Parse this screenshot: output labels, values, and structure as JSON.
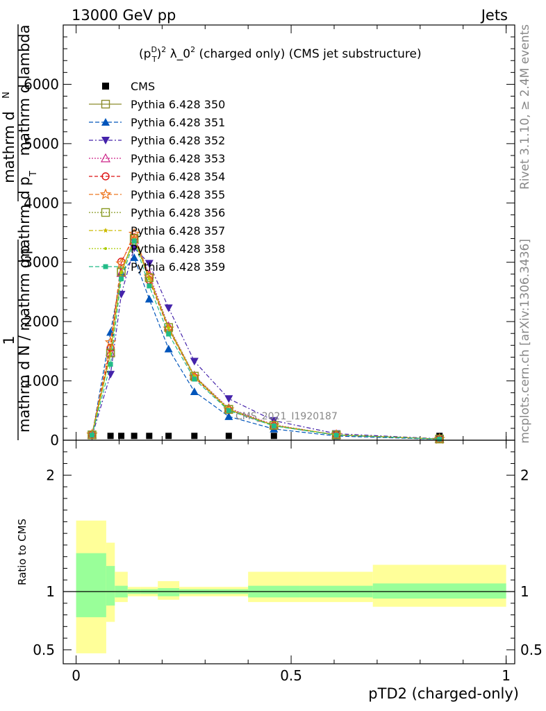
{
  "header": {
    "left": "13000 GeV pp",
    "right": "Jets"
  },
  "side": {
    "rivet": "Rivet 3.1.10, ≥ 2.4M events",
    "mcplots": "mcplots.cern.ch [arXiv:1306.3436]"
  },
  "chart_data": [
    {
      "type": "line",
      "title_parts": [
        "(p",
        "D",
        "T",
        ")",
        "2",
        " λ_0",
        "2",
        " (charged only) (CMS jet substructure)"
      ],
      "ylabel_top": "mathrm d",
      "ylabel_n_top": "N",
      "ylabel_frac_top": "1",
      "ylabel_denominator": "mathrm d N / mathrm d p_T mathrm d p_T mathrm d lambda",
      "ylabel_lines": [
        "mathrm d",
        "N",
        "mathrm d p",
        "T",
        " mathrm d lambda",
        "mathrm d N / mathrm d p",
        "T",
        " mathrm d"
      ],
      "watermark": "CMS_2021_I1920187",
      "xlim": [
        -0.03,
        1.02
      ],
      "ylim": [
        0,
        7000
      ],
      "yticks": [
        0,
        1000,
        2000,
        3000,
        4000,
        5000,
        6000
      ],
      "ytick_labels": [
        "0",
        "1000",
        "2000",
        "3000",
        "4000",
        "5000",
        "6000"
      ],
      "x": [
        0.037,
        0.08,
        0.105,
        0.135,
        0.17,
        0.215,
        0.275,
        0.355,
        0.46,
        0.605,
        0.845
      ],
      "series": [
        {
          "name": "CMS",
          "color": "#000000",
          "marker": "square",
          "dash": "",
          "values": [
            20,
            20,
            20,
            20,
            20,
            20,
            20,
            20,
            20,
            20,
            20
          ]
        },
        {
          "name": "Pythia 6.428 350",
          "color": "#8a8a2a",
          "marker": "open-square",
          "dash": "",
          "values": [
            90,
            1470,
            2830,
            3400,
            2740,
            1900,
            1080,
            520,
            250,
            90,
            20
          ]
        },
        {
          "name": "Pythia 6.428 351",
          "color": "#0055bb",
          "marker": "triangle-up",
          "dash": "6,3",
          "values": [
            80,
            1820,
            2820,
            3080,
            2380,
            1540,
            820,
            400,
            190,
            70,
            15
          ]
        },
        {
          "name": "Pythia 6.428 352",
          "color": "#4422aa",
          "marker": "triangle-down",
          "dash": "6,3,2,3",
          "values": [
            70,
            1110,
            2460,
            3240,
            2980,
            2230,
            1330,
            700,
            330,
            110,
            25
          ]
        },
        {
          "name": "Pythia 6.428 353",
          "color": "#cc2288",
          "marker": "open-triangle",
          "dash": "2,2",
          "values": [
            90,
            1480,
            2820,
            3380,
            2800,
            1920,
            1090,
            540,
            260,
            90,
            20
          ]
        },
        {
          "name": "Pythia 6.428 354",
          "color": "#dd1111",
          "marker": "open-circle",
          "dash": "5,3",
          "values": [
            95,
            1560,
            3010,
            3420,
            2700,
            1870,
            1060,
            510,
            245,
            85,
            20
          ]
        },
        {
          "name": "Pythia 6.428 355",
          "color": "#ee7722",
          "marker": "open-star",
          "dash": "6,3",
          "values": [
            95,
            1650,
            2980,
            3480,
            2760,
            1880,
            1070,
            520,
            250,
            88,
            20
          ]
        },
        {
          "name": "Pythia 6.428 356",
          "color": "#889922",
          "marker": "open-square",
          "dash": "2,2",
          "values": [
            90,
            1470,
            2840,
            3400,
            2740,
            1900,
            1080,
            520,
            250,
            90,
            20
          ]
        },
        {
          "name": "Pythia 6.428 357",
          "color": "#ccbb00",
          "marker": "small-star",
          "dash": "6,3,2,3",
          "values": [
            88,
            1460,
            2830,
            3390,
            2730,
            1890,
            1075,
            520,
            250,
            90,
            20
          ]
        },
        {
          "name": "Pythia 6.428 358",
          "color": "#aacc00",
          "marker": "dot",
          "dash": "2,2",
          "values": [
            88,
            1450,
            2820,
            3380,
            2720,
            1890,
            1075,
            520,
            250,
            90,
            20
          ]
        },
        {
          "name": "Pythia 6.428 359",
          "color": "#22bb88",
          "marker": "filled-square",
          "dash": "6,3",
          "values": [
            85,
            1280,
            2720,
            3360,
            2600,
            1790,
            1030,
            500,
            240,
            85,
            18
          ]
        }
      ]
    },
    {
      "type": "area",
      "ylabel": "Ratio to CMS",
      "xlabel": "pTD2 (charged-only)",
      "xlim": [
        -0.03,
        1.02
      ],
      "ylim": [
        0.38,
        2.3
      ],
      "xticks": [
        0,
        0.5,
        1
      ],
      "xtick_labels": [
        "0",
        "0.5",
        "1"
      ],
      "yticks": [
        0.5,
        1,
        2
      ],
      "ytick_labels": [
        "0.5",
        "1",
        "2"
      ],
      "bins": [
        0,
        0.07,
        0.09,
        0.12,
        0.15,
        0.19,
        0.24,
        0.31,
        0.4,
        0.52,
        0.69,
        1.0
      ],
      "band_inner_low": [
        0.78,
        0.88,
        0.95,
        0.98,
        0.98,
        0.96,
        0.98,
        0.98,
        0.95,
        0.95,
        0.94
      ],
      "band_inner_high": [
        1.33,
        1.22,
        1.05,
        1.02,
        1.02,
        1.03,
        1.02,
        1.02,
        1.05,
        1.05,
        1.07
      ],
      "band_outer_low": [
        0.47,
        0.74,
        0.91,
        0.96,
        0.96,
        0.93,
        0.96,
        0.96,
        0.91,
        0.91,
        0.87
      ],
      "band_outer_high": [
        1.61,
        1.42,
        1.17,
        1.04,
        1.04,
        1.09,
        1.04,
        1.04,
        1.17,
        1.17,
        1.23
      ],
      "reference": 1.0
    }
  ]
}
